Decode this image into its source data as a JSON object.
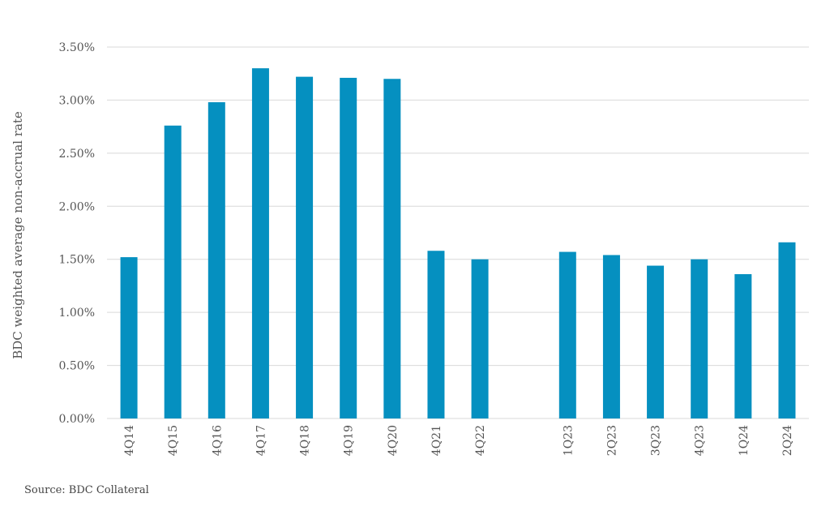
{
  "source": "Source: BDC Collateral",
  "colors": {
    "bar": "#0590C0",
    "grid": "#D9D9D9",
    "text": "#555555"
  },
  "chart_data": {
    "type": "bar",
    "ylabel": "BDC weighted average non-accrual rate",
    "ylim": [
      0,
      3.5
    ],
    "yticks": [
      "0.00%",
      "0.50%",
      "1.00%",
      "1.50%",
      "2.00%",
      "2.50%",
      "3.00%",
      "3.50%"
    ],
    "grid": true,
    "categories": [
      "4Q14",
      "4Q15",
      "4Q16",
      "4Q17",
      "4Q18",
      "4Q19",
      "4Q20",
      "4Q21",
      "4Q22",
      "",
      "1Q23",
      "2Q23",
      "3Q23",
      "4Q23",
      "1Q24",
      "2Q24"
    ],
    "values": [
      1.52,
      2.76,
      2.98,
      3.3,
      3.22,
      3.21,
      3.2,
      1.58,
      1.5,
      null,
      1.57,
      1.54,
      1.44,
      1.5,
      1.36,
      1.66
    ]
  }
}
